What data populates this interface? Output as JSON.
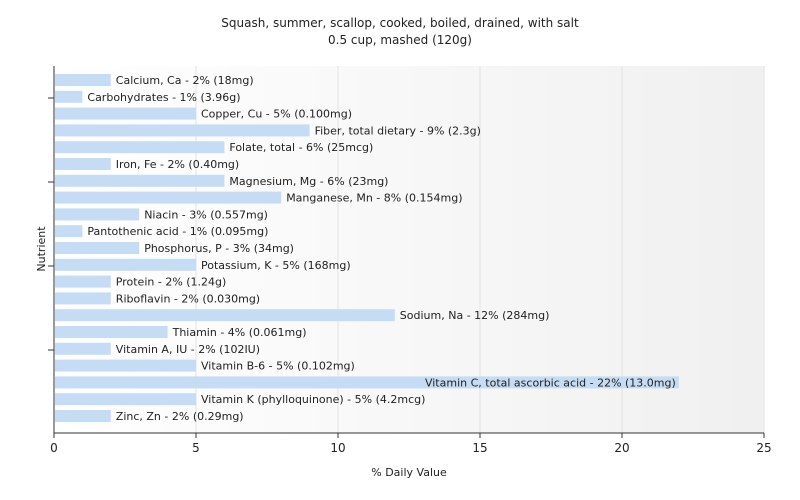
{
  "chart_data": {
    "type": "bar",
    "orientation": "horizontal",
    "title": "Squash, summer, scallop, cooked, boiled, drained, with salt",
    "subtitle": "0.5 cup, mashed (120g)",
    "xlabel": "% Daily Value",
    "ylabel": "Nutrient",
    "xlim": [
      0,
      25
    ],
    "xticks": [
      "0",
      "5",
      "10",
      "15",
      "20",
      "25"
    ],
    "grid": true,
    "bar_color": "#c6dcf5",
    "categories": [
      "Calcium, Ca",
      "Carbohydrates",
      "Copper, Cu",
      "Fiber, total dietary",
      "Folate, total",
      "Iron, Fe",
      "Magnesium, Mg",
      "Manganese, Mn",
      "Niacin",
      "Pantothenic acid",
      "Phosphorus, P",
      "Potassium, K",
      "Protein",
      "Riboflavin",
      "Sodium, Na",
      "Thiamin",
      "Vitamin A, IU",
      "Vitamin B-6",
      "Vitamin C, total ascorbic acid",
      "Vitamin K (phylloquinone)",
      "Zinc, Zn"
    ],
    "values": [
      2,
      1,
      5,
      9,
      6,
      2,
      6,
      8,
      3,
      1,
      3,
      5,
      2,
      2,
      12,
      4,
      2,
      5,
      22,
      5,
      2
    ],
    "labels": [
      "Calcium, Ca - 2% (18mg)",
      "Carbohydrates - 1% (3.96g)",
      "Copper, Cu - 5% (0.100mg)",
      "Fiber, total dietary - 9% (2.3g)",
      "Folate, total - 6% (25mcg)",
      "Iron, Fe - 2% (0.40mg)",
      "Magnesium, Mg - 6% (23mg)",
      "Manganese, Mn - 8% (0.154mg)",
      "Niacin - 3% (0.557mg)",
      "Pantothenic acid - 1% (0.095mg)",
      "Phosphorus, P - 3% (34mg)",
      "Potassium, K - 5% (168mg)",
      "Protein - 2% (1.24g)",
      "Riboflavin - 2% (0.030mg)",
      "Sodium, Na - 12% (284mg)",
      "Thiamin - 4% (0.061mg)",
      "Vitamin A, IU - 2% (102IU)",
      "Vitamin B-6 - 5% (0.102mg)",
      "Vitamin C, total ascorbic acid - 22% (13.0mg)",
      "Vitamin K (phylloquinone) - 5% (4.2mcg)",
      "Zinc, Zn - 2% (0.29mg)"
    ]
  }
}
